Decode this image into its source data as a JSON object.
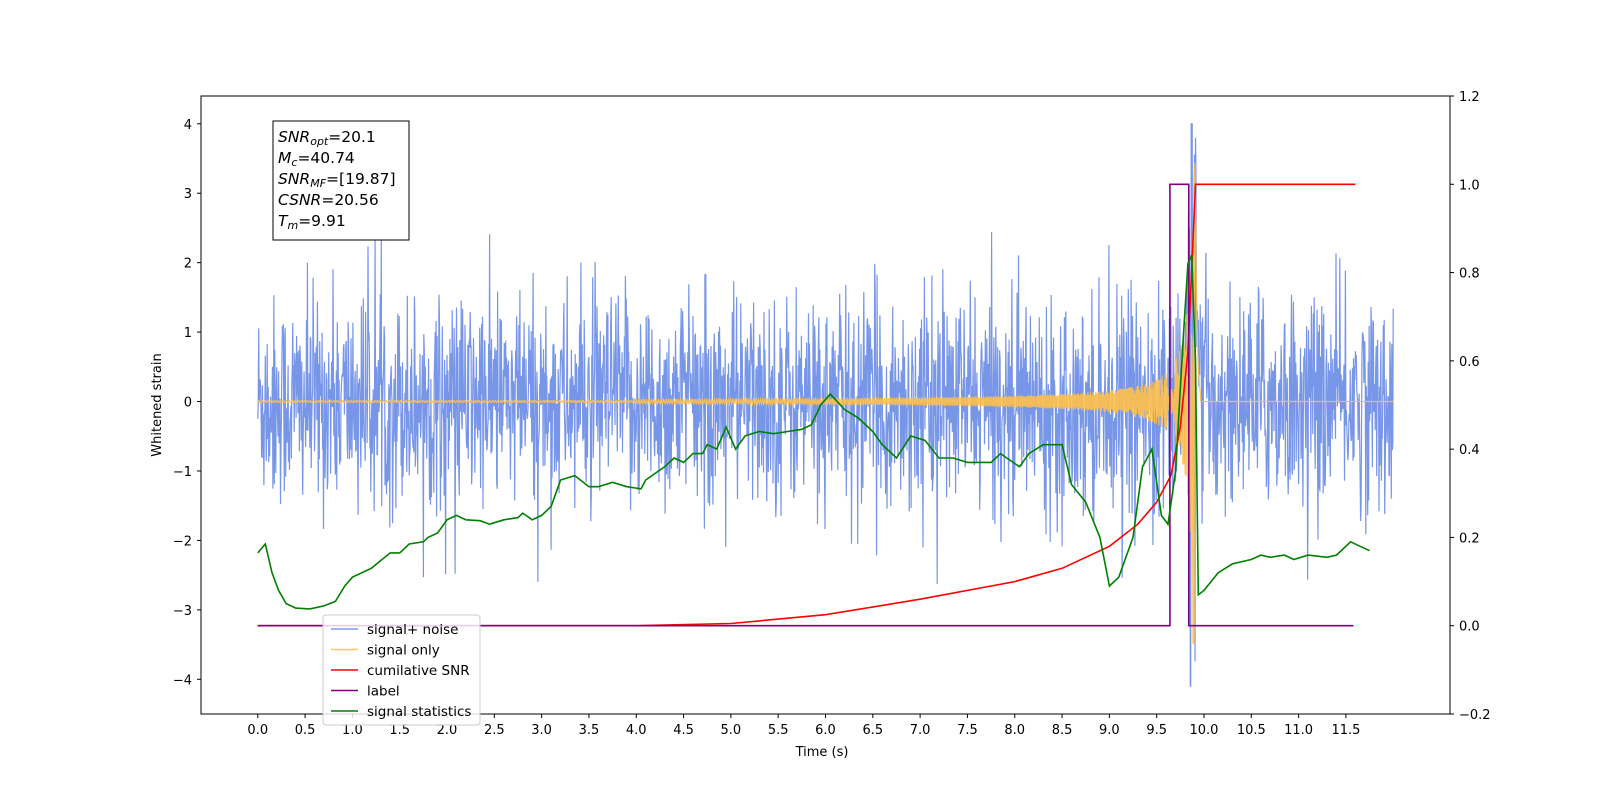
{
  "chart_data": {
    "type": "line",
    "xlabel": "Time (s)",
    "ylabel_left": "Whitened strain",
    "ylabel_right": "",
    "xlim": [
      -0.6,
      12.6
    ],
    "ylim_left": [
      -4.5,
      4.4
    ],
    "ylim_right": [
      -0.2,
      1.2
    ],
    "x_ticks": [
      0.0,
      0.5,
      1.0,
      1.5,
      2.0,
      2.5,
      3.0,
      3.5,
      4.0,
      4.5,
      5.0,
      5.5,
      6.0,
      6.5,
      7.0,
      7.5,
      8.0,
      8.5,
      9.0,
      9.5,
      10.0,
      10.5,
      11.0,
      11.5
    ],
    "y_ticks_left": [
      -4,
      -3,
      -2,
      -1,
      0,
      1,
      2,
      3,
      4
    ],
    "y_ticks_right": [
      -0.2,
      0.0,
      0.2,
      0.4,
      0.6,
      0.8,
      1.0,
      1.2
    ],
    "grid": false,
    "legend_position": "lower-left",
    "annotation": {
      "lines": [
        {
          "base": "SNR",
          "sub": "opt",
          "value": "=20.1"
        },
        {
          "base": "M",
          "sub": "c",
          "value": "=40.74"
        },
        {
          "base": "SNR",
          "sub": "MF",
          "value": "=[19.87]"
        },
        {
          "base": "CSNR",
          "sub": "",
          "value": "=20.56"
        },
        {
          "base": "T",
          "sub": "m",
          "value": "=9.91"
        }
      ]
    },
    "series": [
      {
        "name": "signal+ noise",
        "axis": "left",
        "color": "#7090e6",
        "description_values": {
          "t_start": 0.0,
          "t_end": 12.0,
          "typical_low": -1.5,
          "typical_high": 1.5,
          "peak_max": 4.0,
          "peak_min": -4.1,
          "peak_time": 9.87
        }
      },
      {
        "name": "signal only",
        "axis": "left",
        "color": "#ffc04a",
        "description_values": {
          "t_start": 0.0,
          "t_end": 12.0,
          "merger_time": 9.91,
          "peak_amplitude": 3.55
        }
      },
      {
        "name": "cumilative SNR",
        "axis": "right",
        "color": "#ff0000",
        "points": [
          [
            0.0,
            0.0
          ],
          [
            4.0,
            0.0
          ],
          [
            5.0,
            0.005
          ],
          [
            6.0,
            0.025
          ],
          [
            7.0,
            0.06
          ],
          [
            8.0,
            0.1
          ],
          [
            8.5,
            0.13
          ],
          [
            9.0,
            0.18
          ],
          [
            9.3,
            0.23
          ],
          [
            9.5,
            0.28
          ],
          [
            9.65,
            0.34
          ],
          [
            9.75,
            0.45
          ],
          [
            9.83,
            0.62
          ],
          [
            9.88,
            0.85
          ],
          [
            9.91,
            1.0
          ],
          [
            11.5,
            1.0
          ],
          [
            11.6,
            1.0
          ]
        ]
      },
      {
        "name": "label",
        "axis": "right",
        "color": "#800080",
        "points": [
          [
            0.0,
            0.0
          ],
          [
            9.64,
            0.0
          ],
          [
            9.64,
            1.0
          ],
          [
            9.84,
            1.0
          ],
          [
            9.84,
            0.0
          ],
          [
            11.58,
            0.0
          ]
        ]
      },
      {
        "name": "signal statistics",
        "axis": "right",
        "color": "#008000",
        "points": [
          [
            0.0,
            0.165
          ],
          [
            0.08,
            0.185
          ],
          [
            0.15,
            0.12
          ],
          [
            0.22,
            0.08
          ],
          [
            0.3,
            0.05
          ],
          [
            0.4,
            0.04
          ],
          [
            0.55,
            0.038
          ],
          [
            0.7,
            0.045
          ],
          [
            0.82,
            0.055
          ],
          [
            0.92,
            0.09
          ],
          [
            1.0,
            0.11
          ],
          [
            1.2,
            0.13
          ],
          [
            1.4,
            0.165
          ],
          [
            1.5,
            0.165
          ],
          [
            1.6,
            0.185
          ],
          [
            1.75,
            0.19
          ],
          [
            1.8,
            0.2
          ],
          [
            1.9,
            0.21
          ],
          [
            2.0,
            0.24
          ],
          [
            2.1,
            0.25
          ],
          [
            2.2,
            0.24
          ],
          [
            2.35,
            0.238
          ],
          [
            2.45,
            0.23
          ],
          [
            2.6,
            0.24
          ],
          [
            2.75,
            0.245
          ],
          [
            2.8,
            0.255
          ],
          [
            2.9,
            0.24
          ],
          [
            3.0,
            0.25
          ],
          [
            3.1,
            0.27
          ],
          [
            3.2,
            0.33
          ],
          [
            3.35,
            0.34
          ],
          [
            3.5,
            0.315
          ],
          [
            3.6,
            0.315
          ],
          [
            3.75,
            0.325
          ],
          [
            3.9,
            0.315
          ],
          [
            4.05,
            0.31
          ],
          [
            4.1,
            0.33
          ],
          [
            4.3,
            0.36
          ],
          [
            4.4,
            0.38
          ],
          [
            4.5,
            0.37
          ],
          [
            4.6,
            0.39
          ],
          [
            4.7,
            0.39
          ],
          [
            4.75,
            0.41
          ],
          [
            4.85,
            0.4
          ],
          [
            4.95,
            0.45
          ],
          [
            5.05,
            0.4
          ],
          [
            5.15,
            0.43
          ],
          [
            5.3,
            0.44
          ],
          [
            5.45,
            0.435
          ],
          [
            5.6,
            0.44
          ],
          [
            5.75,
            0.445
          ],
          [
            5.85,
            0.455
          ],
          [
            5.95,
            0.5
          ],
          [
            6.05,
            0.525
          ],
          [
            6.2,
            0.49
          ],
          [
            6.35,
            0.47
          ],
          [
            6.5,
            0.44
          ],
          [
            6.6,
            0.41
          ],
          [
            6.75,
            0.38
          ],
          [
            6.9,
            0.43
          ],
          [
            7.05,
            0.42
          ],
          [
            7.2,
            0.38
          ],
          [
            7.35,
            0.38
          ],
          [
            7.5,
            0.37
          ],
          [
            7.75,
            0.37
          ],
          [
            7.85,
            0.39
          ],
          [
            8.05,
            0.36
          ],
          [
            8.15,
            0.39
          ],
          [
            8.3,
            0.41
          ],
          [
            8.5,
            0.41
          ],
          [
            8.6,
            0.32
          ],
          [
            8.75,
            0.28
          ],
          [
            8.9,
            0.2
          ],
          [
            9.0,
            0.09
          ],
          [
            9.1,
            0.11
          ],
          [
            9.25,
            0.2
          ],
          [
            9.35,
            0.36
          ],
          [
            9.45,
            0.4
          ],
          [
            9.55,
            0.25
          ],
          [
            9.62,
            0.23
          ],
          [
            9.7,
            0.35
          ],
          [
            9.78,
            0.65
          ],
          [
            9.83,
            0.82
          ],
          [
            9.87,
            0.84
          ],
          [
            9.91,
            0.6
          ],
          [
            9.94,
            0.07
          ],
          [
            10.0,
            0.08
          ],
          [
            10.15,
            0.12
          ],
          [
            10.3,
            0.14
          ],
          [
            10.5,
            0.15
          ],
          [
            10.6,
            0.16
          ],
          [
            10.7,
            0.155
          ],
          [
            10.85,
            0.16
          ],
          [
            10.95,
            0.15
          ],
          [
            11.1,
            0.16
          ],
          [
            11.3,
            0.155
          ],
          [
            11.4,
            0.16
          ],
          [
            11.55,
            0.19
          ],
          [
            11.65,
            0.18
          ],
          [
            11.75,
            0.17
          ]
        ]
      }
    ]
  }
}
